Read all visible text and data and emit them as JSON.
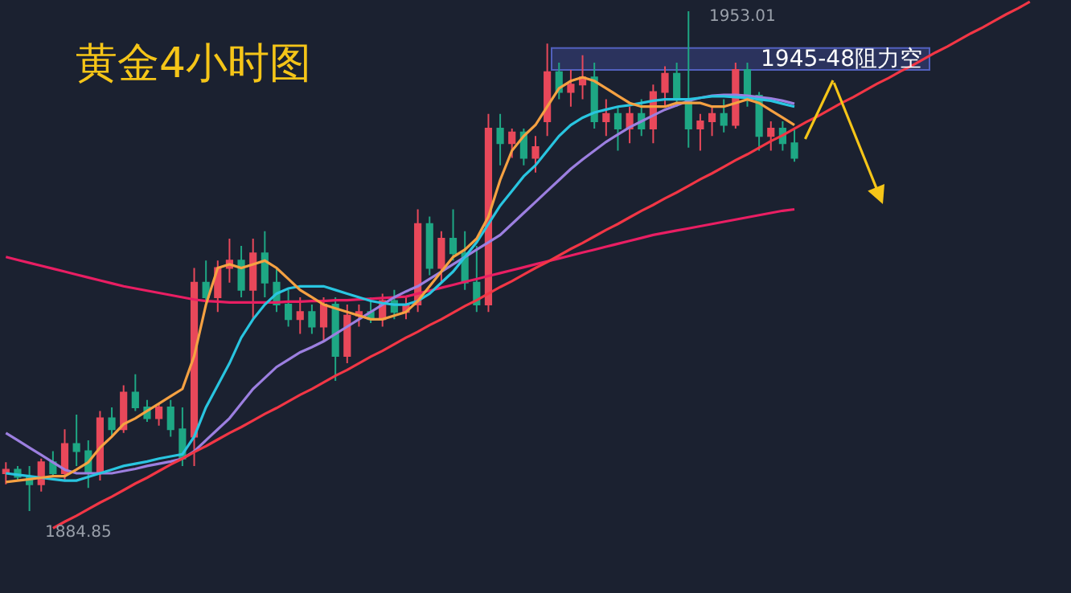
{
  "chart_data": {
    "type": "candlestick",
    "title": "黄金4小时图",
    "categories": [
      null,
      null,
      null,
      null,
      null,
      null,
      null,
      null,
      null,
      null,
      null,
      null,
      null,
      null,
      null,
      null,
      null,
      null,
      null,
      null,
      null,
      null,
      null,
      null,
      null,
      null,
      null,
      null,
      null,
      null,
      null,
      null,
      null,
      null,
      null,
      null,
      null,
      null,
      null,
      null,
      null,
      null,
      null,
      null,
      null,
      null,
      null,
      null,
      null,
      null,
      null,
      null,
      null,
      null,
      null,
      null,
      null,
      null,
      null,
      null,
      null,
      null,
      null,
      null,
      null,
      null,
      null,
      null,
      null,
      null,
      null,
      null,
      null,
      null,
      null,
      null,
      null,
      null,
      null,
      null,
      null,
      null,
      null,
      null,
      null,
      null,
      null,
      null,
      null,
      null,
      null
    ],
    "colors": [
      "#e8485a",
      "#1ea784",
      "#1ea784",
      "#e8485a",
      "#1ea784",
      "#e8485a",
      "#1ea784",
      "#1ea784",
      "#e8485a",
      "#1ea784",
      "#e8485a",
      "#1ea784",
      "#1ea784",
      "#e8485a",
      "#1ea784",
      "#1ea784",
      "#e8485a",
      "#1ea784",
      "#e8485a",
      "#e8485a",
      "#1ea784",
      "#e8485a",
      "#1ea784",
      "#1ea784",
      "#1ea784",
      "#e8485a",
      "#1ea784",
      "#e8485a",
      "#1ea784",
      "#e8485a",
      "#e8485a",
      "#1ea784",
      "#e8485a",
      "#1ea784",
      "#e8485a",
      "#e8485a",
      "#1ea784",
      "#e8485a",
      "#1ea784",
      "#1ea784",
      "#1ea784",
      "#e8485a",
      "#1ea784",
      "#e8485a",
      "#1ea784",
      "#e8485a",
      "#e8485a",
      "#1ea784",
      "#e8485a",
      "#e8485a",
      "#1ea784",
      "#e8485a",
      "#1ea784",
      "#e8485a",
      "#1ea784",
      "#e8485a",
      "#e8485a",
      "#1ea784",
      "#1ea784",
      "#e8485a",
      "#e8485a",
      "#1ea784",
      "#e8485a",
      "#1ea784",
      "#1ea784",
      "#e8485a",
      "#1ea784",
      "#1ea784",
      null,
      null,
      null,
      null,
      null,
      null,
      null,
      null,
      null,
      null,
      null,
      null,
      null,
      null,
      null,
      null,
      null,
      null,
      null,
      null,
      null,
      null,
      null
    ],
    "ohlc": [
      [
        1890,
        1891.5,
        1888.5,
        1890.5
      ],
      [
        1890.5,
        1891,
        1889,
        1889.5
      ],
      [
        1889.5,
        1891,
        1884.85,
        1888.5
      ],
      [
        1888.5,
        1892,
        1887.5,
        1891.5
      ],
      [
        1891.5,
        1893,
        1889.5,
        1890
      ],
      [
        1890,
        1896,
        1889,
        1894
      ],
      [
        1894,
        1898,
        1891,
        1893
      ],
      [
        1893,
        1894.5,
        1888,
        1890
      ],
      [
        1890,
        1898.5,
        1889,
        1897.5
      ],
      [
        1897.5,
        1899,
        1895,
        1896
      ],
      [
        1896,
        1902,
        1895.5,
        1901
      ],
      [
        1901,
        1903.5,
        1898.5,
        1899
      ],
      [
        1899,
        1900,
        1897,
        1897.5
      ],
      [
        1897.5,
        1899.5,
        1896.5,
        1899
      ],
      [
        1899,
        1900,
        1895,
        1896
      ],
      [
        1896,
        1899,
        1891,
        1892
      ],
      [
        1895,
        1918,
        1891,
        1916
      ],
      [
        1916,
        1919,
        1913,
        1914
      ],
      [
        1914,
        1919,
        1912,
        1918
      ],
      [
        1918,
        1922,
        1916,
        1919
      ],
      [
        1919,
        1921,
        1914,
        1915
      ],
      [
        1915,
        1922,
        1911,
        1920
      ],
      [
        1920,
        1923,
        1914,
        1916
      ],
      [
        1916,
        1918,
        1912,
        1913
      ],
      [
        1913,
        1915,
        1910,
        1911
      ],
      [
        1911,
        1914,
        1909,
        1912
      ],
      [
        1912,
        1913,
        1909,
        1910
      ],
      [
        1910,
        1914,
        1908,
        1913
      ],
      [
        1913,
        1914,
        1902.6,
        1906
      ],
      [
        1906,
        1913,
        1905,
        1911.5
      ],
      [
        1911.5,
        1913,
        1910,
        1912
      ],
      [
        1912,
        1914,
        1910.5,
        1911
      ],
      [
        1911,
        1914.5,
        1910,
        1913.5
      ],
      [
        1913.5,
        1915,
        1911,
        1912
      ],
      [
        1912,
        1914,
        1911,
        1913
      ],
      [
        1913,
        1926,
        1912,
        1924
      ],
      [
        1924,
        1925,
        1917,
        1918
      ],
      [
        1918,
        1923,
        1916,
        1922
      ],
      [
        1922,
        1926,
        1919,
        1920
      ],
      [
        1920,
        1923,
        1915,
        1916
      ],
      [
        1916,
        1921,
        1912,
        1913
      ],
      [
        1913,
        1939,
        1912,
        1937
      ],
      [
        1937,
        1939,
        1932,
        1935
      ],
      [
        1935,
        1937,
        1933,
        1936.5
      ],
      [
        1936.5,
        1937,
        1932,
        1933
      ],
      [
        1933,
        1936,
        1931,
        1934.5
      ],
      [
        1938,
        1948.6,
        1936,
        1944.7
      ],
      [
        1944.7,
        1946,
        1941,
        1942
      ],
      [
        1942,
        1945,
        1940,
        1943
      ],
      [
        1943,
        1947,
        1941,
        1944
      ],
      [
        1944,
        1946,
        1937,
        1938
      ],
      [
        1938,
        1941,
        1936,
        1939
      ],
      [
        1939,
        1940,
        1934,
        1937
      ],
      [
        1937,
        1940,
        1935,
        1939
      ],
      [
        1939,
        1941,
        1936,
        1937
      ],
      [
        1937,
        1943,
        1935,
        1942
      ],
      [
        1942,
        1945.5,
        1940,
        1944.5
      ],
      [
        1944.5,
        1946,
        1940,
        1941
      ],
      [
        1941,
        1953.01,
        1934.4,
        1937
      ],
      [
        1937,
        1939,
        1934,
        1938
      ],
      [
        1938,
        1940,
        1936,
        1939
      ],
      [
        1939,
        1941,
        1936.5,
        1937.5
      ],
      [
        1937.5,
        1946,
        1937,
        1945
      ],
      [
        1945,
        1946,
        1940,
        1941.5
      ],
      [
        1941.5,
        1942,
        1934,
        1936
      ],
      [
        1936,
        1938,
        1934,
        1937
      ],
      [
        1937,
        1938,
        1934,
        1935
      ],
      [
        1935,
        1937,
        1932.5,
        1933
      ],
      null,
      null,
      null,
      null,
      null,
      null,
      null,
      null,
      null,
      null,
      null,
      null,
      null,
      null,
      null,
      null,
      null,
      null,
      null,
      null,
      null,
      null,
      null
    ],
    "series": [
      {
        "type": "line",
        "color": "#e91e63",
        "values": [
          1919.5,
          1919.1,
          1918.7,
          1918.3,
          1917.9,
          1917.5,
          1917.1,
          1916.7,
          1916.3,
          1915.9,
          1915.5,
          1915.2,
          1914.9,
          1914.6,
          1914.3,
          1914.0,
          1913.7,
          1913.5,
          1913.4,
          1913.3,
          1913.3,
          1913.3,
          1913.3,
          1913.3,
          1913.4,
          1913.4,
          1913.5,
          1913.5,
          1913.6,
          1913.6,
          1913.7,
          1913.8,
          1913.9,
          1914.0,
          1914.1,
          1914.5,
          1914.9,
          1915.3,
          1915.7,
          1916.1,
          1916.5,
          1916.9,
          1917.3,
          1917.7,
          1918.1,
          1918.5,
          1918.9,
          1919.3,
          1919.7,
          1920.1,
          1920.5,
          1920.9,
          1921.3,
          1921.7,
          1922.1,
          1922.5,
          1922.8,
          1923.1,
          1923.4,
          1923.7,
          1924,
          1924.3,
          1924.6,
          1924.9,
          1925.2,
          1925.5,
          1925.8,
          1926,
          null,
          null,
          null,
          null,
          null,
          null,
          null,
          null,
          null,
          null,
          null,
          null,
          null,
          null,
          null,
          null,
          null,
          null,
          null,
          null,
          null,
          null,
          null
        ]
      },
      {
        "type": "line",
        "color": "#9c7fe0",
        "values": [
          1895.5,
          1894.5,
          1893.5,
          1892.5,
          1891.5,
          1890.5,
          1890,
          1890,
          1890,
          1890,
          1890.3,
          1890.6,
          1891,
          1891.3,
          1891.6,
          1892,
          1893,
          1894.5,
          1896,
          1897.5,
          1899.5,
          1901.5,
          1903,
          1904.5,
          1905.5,
          1906.5,
          1907.2,
          1908,
          1909,
          1910,
          1911,
          1912,
          1913,
          1914,
          1914.8,
          1915.5,
          1916.5,
          1917.5,
          1918.5,
          1919.5,
          1920.5,
          1921.5,
          1922.5,
          1924,
          1925.5,
          1927,
          1928.5,
          1930,
          1931.5,
          1932.8,
          1934,
          1935.2,
          1936.2,
          1937.2,
          1938,
          1938.8,
          1939.6,
          1940.2,
          1940.8,
          1941.2,
          1941.5,
          1941.6,
          1941.6,
          1941.5,
          1941.3,
          1941.1,
          1940.8,
          1940.4,
          null,
          null,
          null,
          null,
          null,
          null,
          null,
          null,
          null,
          null,
          null,
          null,
          null,
          null,
          null,
          null,
          null,
          null,
          null,
          null,
          null,
          null,
          null
        ]
      },
      {
        "type": "line",
        "color": "#29c5e0",
        "values": [
          1890,
          1889.8,
          1889.6,
          1889.4,
          1889.2,
          1889,
          1889,
          1889.5,
          1890,
          1890.5,
          1891,
          1891.3,
          1891.6,
          1892,
          1892.3,
          1892.6,
          1895,
          1899,
          1902,
          1905,
          1908.5,
          1911,
          1913,
          1914.5,
          1915.2,
          1915.5,
          1915.5,
          1915.5,
          1915,
          1914.5,
          1914,
          1913.5,
          1913.2,
          1913,
          1913,
          1913.5,
          1914.5,
          1916,
          1917.5,
          1919.5,
          1921.5,
          1924,
          1926.5,
          1928.5,
          1930.5,
          1932,
          1934,
          1936,
          1937.5,
          1938.5,
          1939.2,
          1939.6,
          1940,
          1940.2,
          1940.5,
          1940.8,
          1941,
          1941,
          1941,
          1941.2,
          1941.4,
          1941.4,
          1941.3,
          1941.2,
          1941,
          1940.8,
          1940.4,
          1940,
          null,
          null,
          null,
          null,
          null,
          null,
          null,
          null,
          null,
          null,
          null,
          null,
          null,
          null,
          null,
          null,
          null,
          null,
          null,
          null,
          null,
          null,
          null
        ]
      },
      {
        "type": "line",
        "color": "#f5a142",
        "values": [
          1888.8,
          1889.0,
          1889.2,
          1889.4,
          1889.6,
          1889.6,
          1890.5,
          1891.5,
          1893.5,
          1895.0,
          1896.7,
          1897.5,
          1898.5,
          1899.5,
          1900.5,
          1901.5,
          1906,
          1913,
          1918,
          1918.5,
          1918,
          1918.5,
          1919,
          1918,
          1916.5,
          1915,
          1914,
          1913,
          1912.5,
          1912,
          1911.5,
          1911,
          1911,
          1911.5,
          1912,
          1913.5,
          1915.5,
          1917.5,
          1919.5,
          1920.5,
          1922,
          1925,
          1930,
          1934,
          1936,
          1937.5,
          1940,
          1942.5,
          1943.5,
          1944,
          1943.5,
          1942.5,
          1941.5,
          1940.5,
          1940,
          1940,
          1940,
          1940.5,
          1940.5,
          1940.5,
          1940,
          1940,
          1940.5,
          1941,
          1940.5,
          1939.5,
          1938.5,
          1937.5,
          null,
          null,
          null,
          null,
          null,
          null,
          null,
          null,
          null,
          null,
          null,
          null,
          null,
          null,
          null,
          null,
          null,
          null,
          null,
          null,
          null,
          null,
          null
        ]
      },
      {
        "type": "line",
        "color": "#f23645",
        "values": [
          null,
          null,
          null,
          null,
          1882.5,
          1883.4,
          1884.2,
          1885.1,
          1886.0,
          1886.8,
          1887.7,
          1888.6,
          1889.4,
          1890.3,
          1891.2,
          1892.0,
          1892.9,
          1893.7,
          1894.6,
          1895.5,
          1896.3,
          1897.2,
          1898.1,
          1898.9,
          1899.8,
          1900.7,
          1901.5,
          1902.4,
          1903.3,
          1904.1,
          1905.0,
          1905.9,
          1906.7,
          1907.6,
          1908.5,
          1909.3,
          1910.2,
          1911.0,
          1911.9,
          1912.8,
          1913.6,
          1914.5,
          1915.4,
          1916.2,
          1917.1,
          1918.0,
          1918.8,
          1919.7,
          1920.6,
          1921.4,
          1922.3,
          1923.2,
          1924.0,
          1924.9,
          1925.8,
          1926.6,
          1927.5,
          1928.3,
          1929.2,
          1930.1,
          1930.9,
          1931.8,
          1932.7,
          1933.5,
          1934.4,
          1935.3,
          1936.1,
          1937.0,
          1937.9,
          1938.7,
          1939.6,
          1940.5,
          1941.3,
          1942.2,
          1943.1,
          1943.9,
          1944.8,
          1945.6,
          1946.5,
          1947.4,
          1948.2,
          1949.1,
          1950.0,
          1950.8,
          1951.7,
          1952.6,
          1953.4,
          1954.3,
          null,
          null,
          null
        ]
      }
    ],
    "bands": [
      {
        "axis": "y",
        "from": 1945,
        "to": 1948,
        "label": "1945-48阻力空",
        "color": "#2e3766"
      }
    ],
    "annotations": [
      "1953.01",
      "1884.85"
    ]
  }
}
